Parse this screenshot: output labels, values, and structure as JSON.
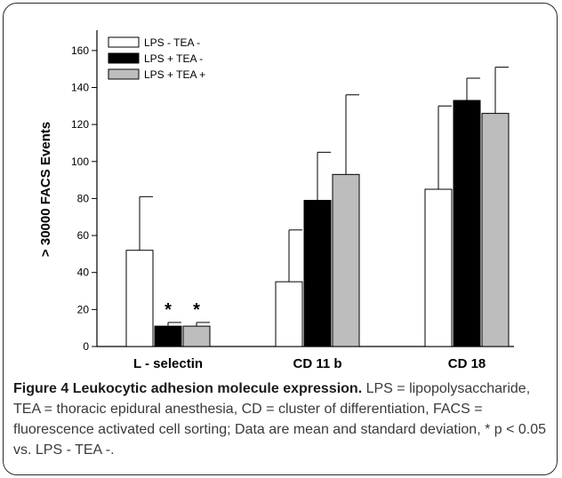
{
  "chart_data": {
    "type": "bar",
    "ylabel": "> 30000 FACS Events",
    "ylim": [
      0,
      170
    ],
    "yticks": [
      0,
      20,
      40,
      60,
      80,
      100,
      120,
      140,
      160
    ],
    "categories": [
      "L - selectin",
      "CD 11 b",
      "CD 18"
    ],
    "series": [
      {
        "name": "LPS - TEA -",
        "color": "#ffffff",
        "values": [
          52,
          35,
          85
        ],
        "sd": [
          29,
          28,
          45
        ]
      },
      {
        "name": "LPS + TEA -",
        "color": "#000000",
        "values": [
          11,
          79,
          133
        ],
        "sd": [
          2,
          26,
          12
        ]
      },
      {
        "name": "LPS + TEA +",
        "color": "#bdbdbd",
        "values": [
          11,
          93,
          126
        ],
        "sd": [
          2,
          43,
          25
        ]
      }
    ],
    "significance": [
      {
        "category": 0,
        "series": 1,
        "label": "*"
      },
      {
        "category": 0,
        "series": 2,
        "label": "*"
      }
    ],
    "legend_position": "top-left"
  },
  "caption": {
    "label": "Figure 4",
    "title": "Leukocytic adhesion molecule expression.",
    "text": "LPS = lipopolysaccharide, TEA = thoracic epidural anesthesia, CD = cluster of differentiation, FACS = fluorescence activated cell sorting; Data are mean and standard deviation, * p < 0.05 vs. LPS - TEA -."
  }
}
